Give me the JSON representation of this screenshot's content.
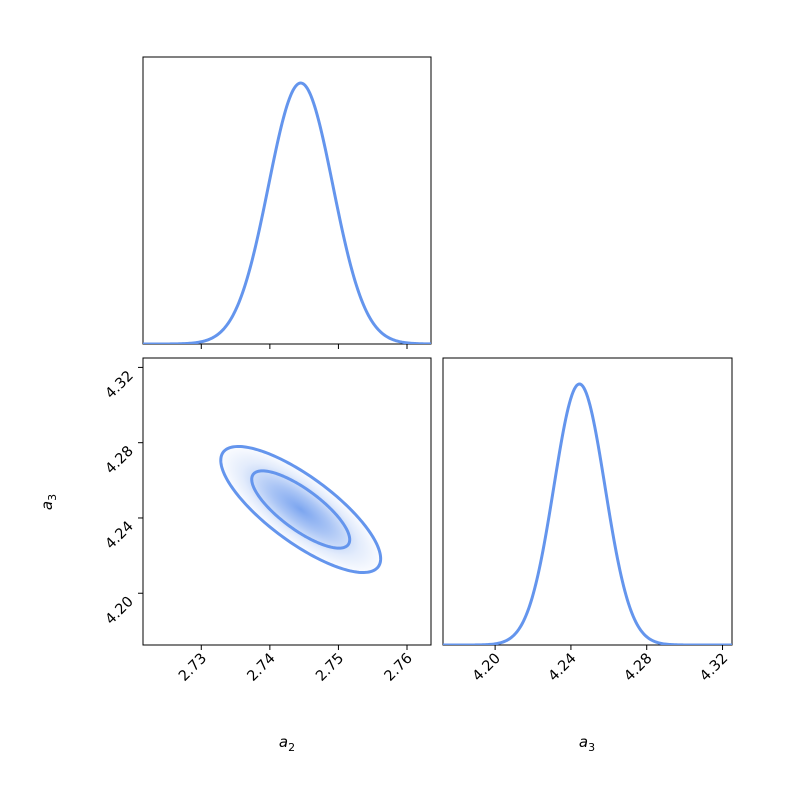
{
  "chart_data": {
    "type": "corner_plot",
    "color": "#6495ED",
    "parameters": [
      {
        "name": "a",
        "subscript": "2"
      },
      {
        "name": "a",
        "subscript": "3"
      }
    ],
    "panels": [
      {
        "id": "a2_marginal",
        "type": "line",
        "kind": "gaussian_density",
        "xlim": [
          2.7215,
          2.7635
        ],
        "mean": 2.7445,
        "sd": 0.0047,
        "xticks": [
          2.73,
          2.74,
          2.75,
          2.76
        ],
        "tick_labels_shown": false
      },
      {
        "id": "a3_vs_a2",
        "type": "contour",
        "xlim": [
          2.7215,
          2.7635
        ],
        "ylim": [
          4.1725,
          4.325
        ],
        "mean": [
          2.7445,
          4.2445
        ],
        "sd": [
          0.0047,
          0.0135
        ],
        "correlation": -0.78,
        "contour_levels_sigma": [
          1,
          2
        ],
        "xticks": [
          2.73,
          2.74,
          2.75,
          2.76
        ],
        "xtick_labels": [
          "2.73",
          "2.74",
          "2.75",
          "2.76"
        ],
        "yticks": [
          4.2,
          4.24,
          4.28,
          4.32
        ],
        "ytick_labels": [
          "4.20",
          "4.24",
          "4.28",
          "4.32"
        ],
        "xlabel": {
          "base": "a",
          "sub": "2"
        },
        "ylabel": {
          "base": "a",
          "sub": "3"
        }
      },
      {
        "id": "a3_marginal",
        "type": "line",
        "kind": "gaussian_density",
        "xlim": [
          4.1725,
          4.325
        ],
        "mean": 4.2445,
        "sd": 0.0135,
        "xticks": [
          4.2,
          4.24,
          4.28,
          4.32
        ],
        "xtick_labels": [
          "4.20",
          "4.24",
          "4.28",
          "4.32"
        ],
        "xlabel": {
          "base": "a",
          "sub": "3"
        }
      }
    ]
  }
}
